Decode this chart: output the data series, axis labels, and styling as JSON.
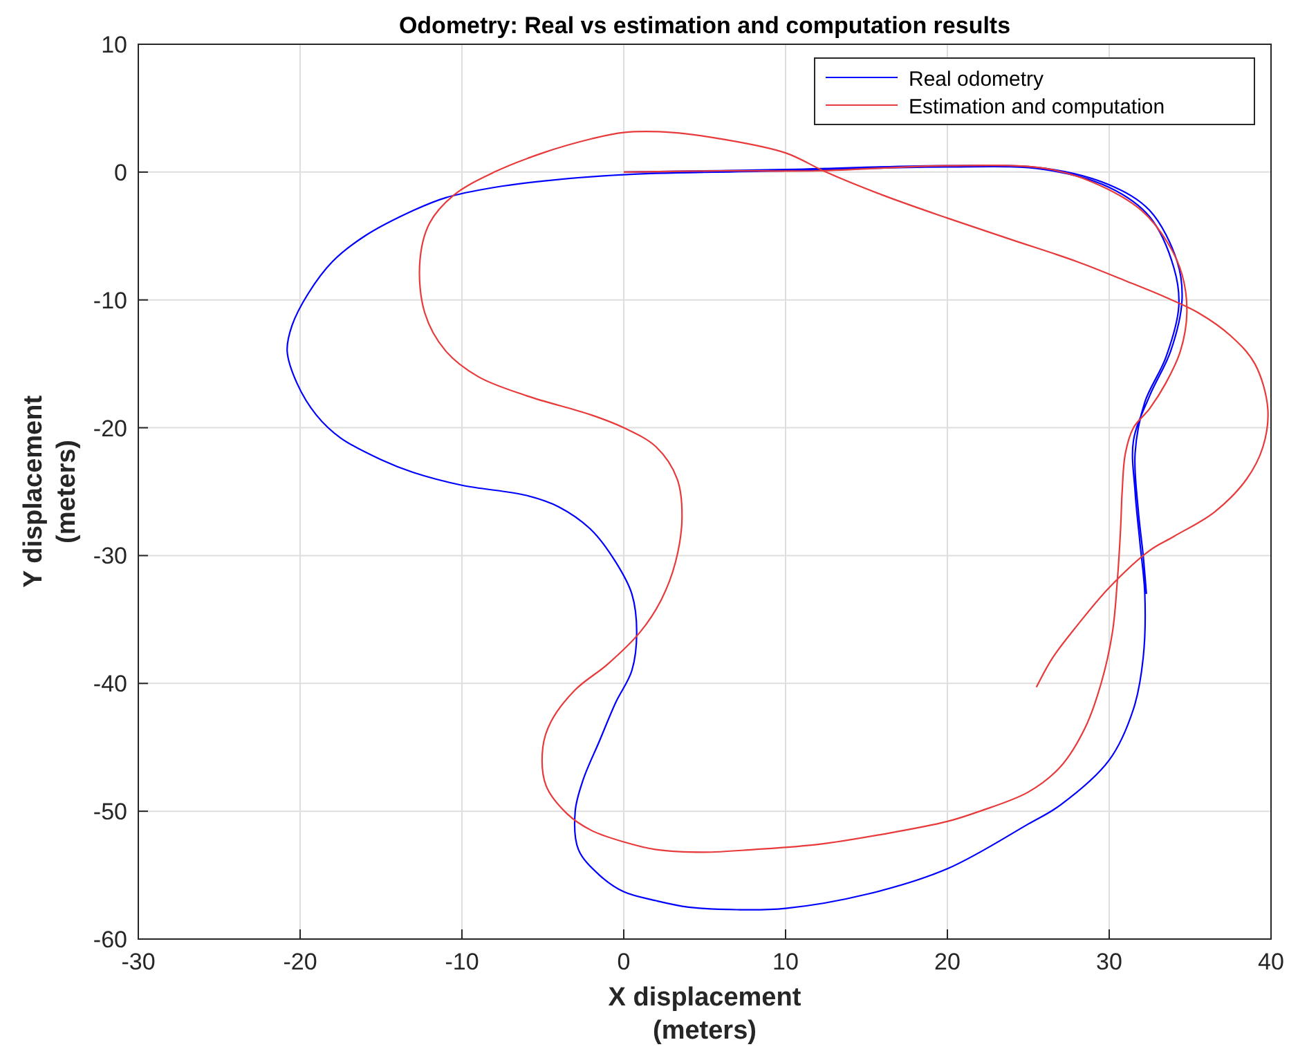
{
  "chart_data": {
    "type": "line",
    "title": "Odometry: Real vs estimation and computation results",
    "xlabel": "X displacement\n(meters)",
    "ylabel": "Y displacement\n(meters)",
    "xlim": [
      -30,
      40
    ],
    "ylim": [
      -60,
      10
    ],
    "xticks": [
      -30,
      -20,
      -10,
      0,
      10,
      20,
      30,
      40
    ],
    "yticks": [
      -60,
      -50,
      -40,
      -30,
      -20,
      -10,
      0,
      10
    ],
    "grid": true,
    "legend": "top right",
    "marker": "none",
    "line_style": "solid",
    "series": [
      {
        "name": "Real odometry",
        "color": "#0000ff",
        "x": [
          0,
          10,
          20,
          26,
          30,
          32.5,
          34.2,
          34.5,
          33.8,
          32.5,
          31.5,
          31.6,
          31.9,
          32.2,
          32.1,
          31.5,
          30,
          27,
          25,
          20,
          15,
          10,
          7,
          4,
          2,
          0,
          -1.5,
          -2.8,
          -3,
          -2.5,
          -1.5,
          -0.5,
          0.5,
          0.8,
          0.5,
          -0.5,
          -2,
          -4,
          -6,
          -10,
          -13,
          -15,
          -17.5,
          -19,
          -20.2,
          -20.8,
          -20.5,
          -19.5,
          -18,
          -16,
          -13,
          -11,
          -8,
          -5,
          0,
          10,
          20,
          26,
          30,
          32.5,
          34,
          34.3,
          33.5,
          32.2,
          31.6,
          31.8,
          32.1,
          32.3
        ],
        "values": [
          0,
          0.2,
          0.5,
          0.3,
          -1,
          -3,
          -7,
          -10,
          -14,
          -17.5,
          -21,
          -25,
          -29,
          -33,
          -38,
          -42,
          -46,
          -49.5,
          -51,
          -54.5,
          -56.5,
          -57.6,
          -57.7,
          -57.5,
          -57,
          -56.3,
          -55,
          -53,
          -50,
          -47.5,
          -44.5,
          -41.5,
          -39,
          -36,
          -33,
          -30.5,
          -28,
          -26.2,
          -25.3,
          -24.5,
          -23.5,
          -22.5,
          -20.8,
          -19,
          -16.5,
          -14,
          -12,
          -9.5,
          -7,
          -5,
          -3,
          -2,
          -1.2,
          -0.7,
          -0.2,
          0.1,
          0.4,
          0.2,
          -1.2,
          -3.5,
          -7.5,
          -10.5,
          -14.5,
          -18,
          -22,
          -26.5,
          -30,
          -33
        ]
      },
      {
        "name": "Estimation and computation",
        "color": "#e8393b",
        "x": [
          0,
          6,
          12,
          20,
          26,
          29,
          32,
          33.6,
          34.5,
          34.8,
          34.4,
          33.5,
          32.5,
          31.5,
          31,
          30.8,
          30.7,
          30.5,
          30.2,
          29.5,
          28.5,
          27,
          25,
          22,
          20,
          16,
          12,
          8,
          5,
          2,
          0,
          -2,
          -3.5,
          -4.8,
          -5,
          -4.5,
          -3,
          -1,
          1,
          2.3,
          3.2,
          3.6,
          3.3,
          2,
          0,
          -2,
          -6,
          -9,
          -11,
          -12.3,
          -12.6,
          -12,
          -10.5,
          -8,
          -5,
          -2,
          0,
          3,
          6,
          10,
          12.5,
          16,
          20,
          24,
          28,
          31,
          33.5,
          35.5,
          37.5,
          39,
          39.8,
          39.5,
          38.5,
          36.5,
          34,
          32.5,
          30,
          28,
          26.5,
          25.5
        ],
        "values": [
          0,
          0.1,
          0.1,
          0.5,
          0.3,
          -0.8,
          -3,
          -5.5,
          -8,
          -11,
          -14,
          -16.5,
          -18.5,
          -20,
          -22,
          -25,
          -28,
          -32,
          -36,
          -40,
          -43.5,
          -46.5,
          -48.5,
          -50,
          -50.8,
          -51.8,
          -52.6,
          -53,
          -53.2,
          -53,
          -52.4,
          -51.5,
          -50.2,
          -48,
          -45,
          -43,
          -40.5,
          -38.5,
          -36,
          -33.5,
          -30.5,
          -27,
          -24,
          -21.5,
          -20,
          -19,
          -17.5,
          -16,
          -14,
          -11,
          -7,
          -4,
          -1.8,
          0,
          1.5,
          2.6,
          3.1,
          3.1,
          2.6,
          1.5,
          0,
          -1.8,
          -3.6,
          -5.3,
          -7,
          -8.5,
          -9.8,
          -11,
          -12.8,
          -15,
          -18.5,
          -21.5,
          -24,
          -26.6,
          -28.5,
          -29.6,
          -32.5,
          -35.5,
          -38,
          -40.3
        ]
      }
    ]
  }
}
